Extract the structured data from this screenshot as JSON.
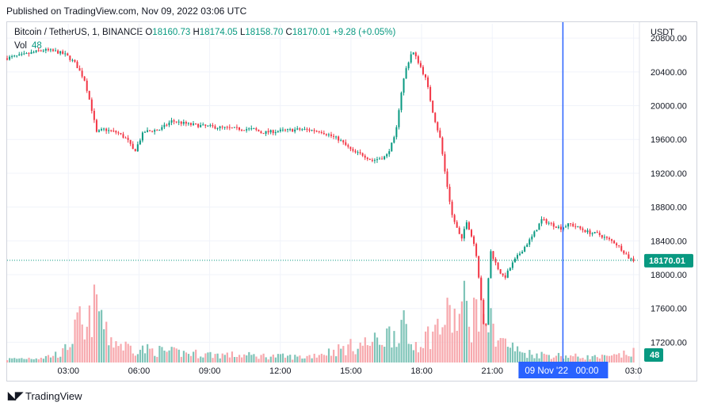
{
  "published": "Published on TradingView.com, Nov 09, 2022 03:06 UTC",
  "legend": {
    "symbol": "Bitcoin / TetherUS, 1, BINANCE",
    "open_label": "O",
    "open": "18160.73",
    "high_label": "H",
    "high": "18174.05",
    "low_label": "L",
    "low": "18158.70",
    "close_label": "C",
    "close": "18170.01",
    "change": "+9.28 (+0.05%)",
    "vol_label": "Vol",
    "vol_value": "48"
  },
  "colors": {
    "up": "#089981",
    "down": "#f23645",
    "up_vol": "#7fc4b8",
    "down_vol": "#f7a8ad",
    "crosshair": "#2962ff",
    "grid": "#f0f3fa"
  },
  "brand": "TradingView",
  "crosshair_label": "09 Nov '22   00:00",
  "chart_data": {
    "type": "candlestick",
    "currency": "USDT",
    "y_ticks": [
      "20800.00",
      "20400.00",
      "20000.00",
      "19600.00",
      "19200.00",
      "18800.00",
      "18400.00",
      "18000.00",
      "17600.00",
      "17200.00"
    ],
    "y_tick_values": [
      20800,
      20400,
      20000,
      19600,
      19200,
      18800,
      18400,
      18000,
      17600,
      17200
    ],
    "x_ticks": [
      "03:00",
      "06:00",
      "09:00",
      "12:00",
      "15:00",
      "18:00",
      "21:00",
      "03:0"
    ],
    "x_tick_hours": [
      3,
      6,
      9,
      12,
      15,
      18,
      21,
      27
    ],
    "x_range_hours": [
      0.4,
      27.25
    ],
    "ylim": [
      16960,
      20970
    ],
    "last_price": "18170.01",
    "last_volume": "48",
    "crosshair_hour": 24,
    "price_path": [
      [
        0.4,
        20560
      ],
      [
        1.2,
        20600
      ],
      [
        2.0,
        20660
      ],
      [
        2.6,
        20640
      ],
      [
        3.0,
        20600
      ],
      [
        3.4,
        20500
      ],
      [
        3.8,
        20300
      ],
      [
        4.1,
        19950
      ],
      [
        4.3,
        19680
      ],
      [
        4.6,
        19720
      ],
      [
        5.2,
        19680
      ],
      [
        5.6,
        19600
      ],
      [
        5.9,
        19450
      ],
      [
        6.3,
        19690
      ],
      [
        7.0,
        19720
      ],
      [
        7.5,
        19820
      ],
      [
        8.2,
        19780
      ],
      [
        8.8,
        19760
      ],
      [
        10.0,
        19730
      ],
      [
        11.0,
        19720
      ],
      [
        11.3,
        19680
      ],
      [
        12.0,
        19700
      ],
      [
        13.0,
        19720
      ],
      [
        13.8,
        19700
      ],
      [
        14.6,
        19600
      ],
      [
        15.2,
        19450
      ],
      [
        15.6,
        19420
      ],
      [
        16.0,
        19350
      ],
      [
        16.6,
        19400
      ],
      [
        17.0,
        19650
      ],
      [
        17.2,
        20100
      ],
      [
        17.4,
        20400
      ],
      [
        17.7,
        20650
      ],
      [
        18.0,
        20500
      ],
      [
        18.3,
        20300
      ],
      [
        18.6,
        19900
      ],
      [
        18.9,
        19600
      ],
      [
        19.1,
        19200
      ],
      [
        19.4,
        18700
      ],
      [
        19.8,
        18400
      ],
      [
        20.0,
        18650
      ],
      [
        20.4,
        18300
      ],
      [
        20.6,
        17800
      ],
      [
        20.8,
        17200
      ],
      [
        21.0,
        18300
      ],
      [
        21.3,
        18100
      ],
      [
        21.6,
        17950
      ],
      [
        22.0,
        18150
      ],
      [
        22.4,
        18300
      ],
      [
        22.8,
        18450
      ],
      [
        23.2,
        18650
      ],
      [
        23.6,
        18600
      ],
      [
        24.0,
        18550
      ],
      [
        24.4,
        18600
      ],
      [
        24.8,
        18550
      ],
      [
        25.2,
        18500
      ],
      [
        25.6,
        18480
      ],
      [
        26.0,
        18420
      ],
      [
        26.3,
        18380
      ],
      [
        26.6,
        18300
      ],
      [
        26.9,
        18200
      ],
      [
        27.1,
        18170
      ]
    ],
    "volume_path": [
      [
        0.4,
        5
      ],
      [
        2.0,
        8
      ],
      [
        2.8,
        15
      ],
      [
        3.2,
        40
      ],
      [
        3.5,
        60
      ],
      [
        3.7,
        30
      ],
      [
        4.0,
        75
      ],
      [
        4.3,
        85
      ],
      [
        4.6,
        40
      ],
      [
        5.3,
        25
      ],
      [
        6.0,
        20
      ],
      [
        7.5,
        15
      ],
      [
        9.0,
        12
      ],
      [
        11.0,
        10
      ],
      [
        13.0,
        8
      ],
      [
        14.6,
        20
      ],
      [
        15.2,
        25
      ],
      [
        16.0,
        30
      ],
      [
        16.8,
        45
      ],
      [
        17.2,
        55
      ],
      [
        17.5,
        25
      ],
      [
        17.8,
        30
      ],
      [
        18.3,
        40
      ],
      [
        18.8,
        55
      ],
      [
        19.2,
        70
      ],
      [
        19.5,
        60
      ],
      [
        19.8,
        85
      ],
      [
        20.1,
        60
      ],
      [
        20.4,
        90
      ],
      [
        20.7,
        75
      ],
      [
        21.0,
        50
      ],
      [
        21.5,
        30
      ],
      [
        22.2,
        15
      ],
      [
        23.0,
        12
      ],
      [
        24.0,
        10
      ],
      [
        25.0,
        8
      ],
      [
        26.0,
        8
      ],
      [
        27.1,
        15
      ]
    ]
  }
}
